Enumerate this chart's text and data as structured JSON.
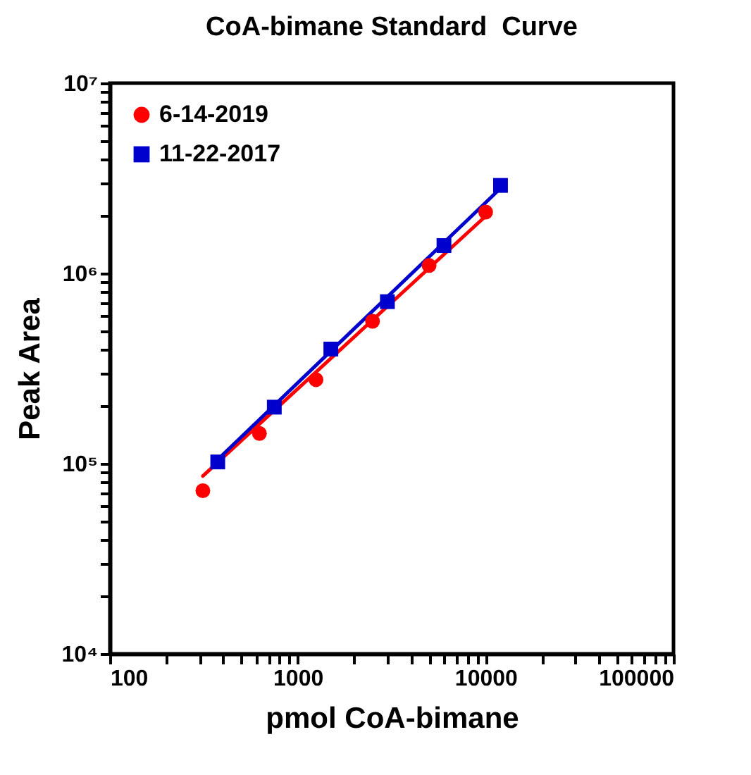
{
  "chart_data": {
    "type": "scatter",
    "title": "CoA-bimane Standard  Curve",
    "xlabel": "pmol CoA-bimane",
    "ylabel": "Peak Area",
    "log": "xy",
    "grid": false,
    "legend": "top left",
    "xlim": [
      100,
      100000
    ],
    "ylim": [
      10000,
      10000000
    ],
    "xticks": [
      100,
      {
        "value": 200,
        "label": null
      },
      {
        "value": 300,
        "label": null
      },
      {
        "value": 400,
        "label": null
      },
      {
        "value": 500,
        "label": null
      },
      {
        "value": 600,
        "label": null
      },
      {
        "value": 700,
        "label": null
      },
      {
        "value": 800,
        "label": null
      },
      {
        "value": 900,
        "label": null
      },
      1000,
      {
        "value": 2000,
        "label": null
      },
      {
        "value": 3000,
        "label": null
      },
      {
        "value": 4000,
        "label": null
      },
      {
        "value": 5000,
        "label": null
      },
      {
        "value": 6000,
        "label": null
      },
      {
        "value": 7000,
        "label": null
      },
      {
        "value": 8000,
        "label": null
      },
      {
        "value": 9000,
        "label": null
      },
      10000,
      {
        "value": 20000,
        "label": null
      },
      {
        "value": 30000,
        "label": null
      },
      {
        "value": 40000,
        "label": null
      },
      {
        "value": 50000,
        "label": null
      },
      {
        "value": 60000,
        "label": null
      },
      {
        "value": 70000,
        "label": null
      },
      {
        "value": 80000,
        "label": null
      },
      {
        "value": 90000,
        "label": null
      },
      100000
    ],
    "yticks": [
      {
        "value": 10000,
        "label": "10⁴"
      },
      {
        "value": 20000,
        "label": null
      },
      {
        "value": 30000,
        "label": null
      },
      {
        "value": 40000,
        "label": null
      },
      {
        "value": 50000,
        "label": null
      },
      {
        "value": 60000,
        "label": null
      },
      {
        "value": 70000,
        "label": null
      },
      {
        "value": 80000,
        "label": null
      },
      {
        "value": 90000,
        "label": null
      },
      {
        "value": 100000,
        "label": "10⁵"
      },
      {
        "value": 200000,
        "label": null
      },
      {
        "value": 300000,
        "label": null
      },
      {
        "value": 400000,
        "label": null
      },
      {
        "value": 500000,
        "label": null
      },
      {
        "value": 600000,
        "label": null
      },
      {
        "value": 700000,
        "label": null
      },
      {
        "value": 800000,
        "label": null
      },
      {
        "value": 900000,
        "label": null
      },
      {
        "value": 1000000,
        "label": "10⁶"
      },
      {
        "value": 2000000,
        "label": null
      },
      {
        "value": 3000000,
        "label": null
      },
      {
        "value": 4000000,
        "label": null
      },
      {
        "value": 5000000,
        "label": null
      },
      {
        "value": 6000000,
        "label": null
      },
      {
        "value": 7000000,
        "label": null
      },
      {
        "value": 8000000,
        "label": null
      },
      {
        "value": 9000000,
        "label": null
      },
      {
        "value": 10000000,
        "label": "10⁷"
      }
    ],
    "series": [
      {
        "type": "line",
        "color": "#ff0000",
        "marker": "none",
        "x": [
          312.5,
          10000
        ],
        "values": [
          86000,
          2000000
        ]
      },
      {
        "type": "line",
        "color": "#0000cc",
        "marker": "none",
        "x": [
          375,
          12000
        ],
        "values": [
          105000,
          2800000
        ]
      },
      {
        "name": "6-14-2019",
        "color": "#ff0000",
        "marker": "circle",
        "x": [
          312.5,
          625,
          1250,
          2500,
          5000,
          10000
        ],
        "values": [
          72000,
          144000,
          276000,
          560000,
          1100000,
          2100000
        ]
      },
      {
        "name": "11-22-2017",
        "color": "#0000cc",
        "marker": "square",
        "x": [
          375,
          750,
          1500,
          3000,
          6000,
          12000
        ],
        "values": [
          102000,
          198000,
          400000,
          710000,
          1400000,
          2900000
        ]
      }
    ]
  }
}
